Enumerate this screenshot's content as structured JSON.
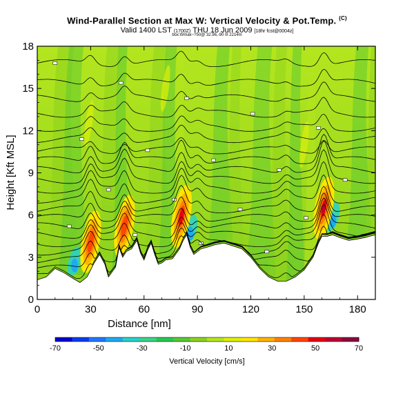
{
  "header": {
    "title": "Wind-Parallel Section at Max W: Vertical Velocity & Pot.Temp.",
    "title_mark": "(C)",
    "valid_prefix": "Valid 1400 LST",
    "valid_utc": "(1700Z)",
    "valid_date": "THU 18 Jun 2009",
    "valid_suffix": "[18hr fcst@0004z]",
    "subline": "box:Wmax~?50@ 32.96,-90 0l 2214m"
  },
  "chart_data": {
    "type": "heatmap",
    "title": "Wind-Parallel Section at Max W: Vertical Velocity & Pot.Temp.",
    "xlabel": "Distance [nm]",
    "ylabel": "Height [Kft MSL]",
    "xlim": [
      0,
      190
    ],
    "ylim": [
      0,
      18
    ],
    "xticks": [
      0,
      30,
      60,
      90,
      120,
      150,
      180
    ],
    "yticks": [
      0,
      3,
      6,
      9,
      12,
      15,
      18
    ],
    "colorbar": {
      "label": "Vertical Velocity [cm/s]",
      "tick_labels": [
        -70,
        -50,
        -30,
        -10,
        10,
        30,
        50,
        70
      ],
      "colors": [
        "#0000cd",
        "#0a3cf0",
        "#1e78ff",
        "#1eaaf0",
        "#28d2c8",
        "#3cd28c",
        "#28c850",
        "#5ac832",
        "#8cd21e",
        "#b4e61e",
        "#dcf00a",
        "#ffe600",
        "#ffb400",
        "#ff8200",
        "#ff4600",
        "#e60014",
        "#be0032",
        "#8c0a3c"
      ]
    },
    "terrain": [
      [
        0,
        1.4
      ],
      [
        5,
        1.6
      ],
      [
        10,
        2.2
      ],
      [
        15,
        1.9
      ],
      [
        20,
        1.5
      ],
      [
        24,
        1.2
      ],
      [
        28,
        1.6
      ],
      [
        32,
        2.6
      ],
      [
        35,
        3.2
      ],
      [
        38,
        2.5
      ],
      [
        40,
        1.6
      ],
      [
        44,
        2.3
      ],
      [
        46,
        3.7
      ],
      [
        48,
        3.0
      ],
      [
        50,
        3.4
      ],
      [
        53,
        3.6
      ],
      [
        56,
        4.2
      ],
      [
        58,
        3.3
      ],
      [
        60,
        2.8
      ],
      [
        62,
        3.5
      ],
      [
        64,
        4.0
      ],
      [
        66,
        3.2
      ],
      [
        68,
        2.5
      ],
      [
        70,
        2.6
      ],
      [
        72,
        2.8
      ],
      [
        76,
        2.9
      ],
      [
        80,
        3.6
      ],
      [
        82,
        4.2
      ],
      [
        84,
        4.6
      ],
      [
        86,
        3.7
      ],
      [
        88,
        3.2
      ],
      [
        90,
        3.4
      ],
      [
        92,
        3.6
      ],
      [
        95,
        3.7
      ],
      [
        100,
        3.9
      ],
      [
        105,
        4.0
      ],
      [
        110,
        3.8
      ],
      [
        115,
        3.6
      ],
      [
        120,
        3.0
      ],
      [
        125,
        2.2
      ],
      [
        130,
        1.6
      ],
      [
        135,
        1.3
      ],
      [
        140,
        1.3
      ],
      [
        145,
        1.6
      ],
      [
        150,
        2.1
      ],
      [
        155,
        3.0
      ],
      [
        158,
        4.0
      ],
      [
        160,
        4.5
      ],
      [
        163,
        4.5
      ],
      [
        166,
        4.6
      ],
      [
        170,
        4.4
      ],
      [
        175,
        4.2
      ],
      [
        180,
        4.3
      ],
      [
        184,
        4.4
      ],
      [
        187,
        4.5
      ],
      [
        190,
        4.6
      ]
    ],
    "updrafts": [
      {
        "x": 30,
        "peak_cm_s": 45
      },
      {
        "x": 49,
        "peak_cm_s": 45
      },
      {
        "x": 81,
        "peak_cm_s": 55
      },
      {
        "x": 161,
        "peak_cm_s": 75
      }
    ],
    "downdrafts": [
      {
        "x": 21,
        "min_cm_s": -35
      },
      {
        "x": 86,
        "min_cm_s": -30
      },
      {
        "x": 166,
        "min_cm_s": -25
      }
    ],
    "isentropes_base_height": [
      16.8,
      15.4,
      14.3,
      13.2,
      12.2,
      11.4,
      10.6,
      9.9,
      9.2,
      8.5,
      7.8,
      7.1,
      6.4,
      5.8,
      5.2,
      4.6,
      4.0,
      3.4,
      2.8,
      2.2,
      1.6
    ]
  },
  "colorbar_title": "Vertical Velocity [cm/s]"
}
